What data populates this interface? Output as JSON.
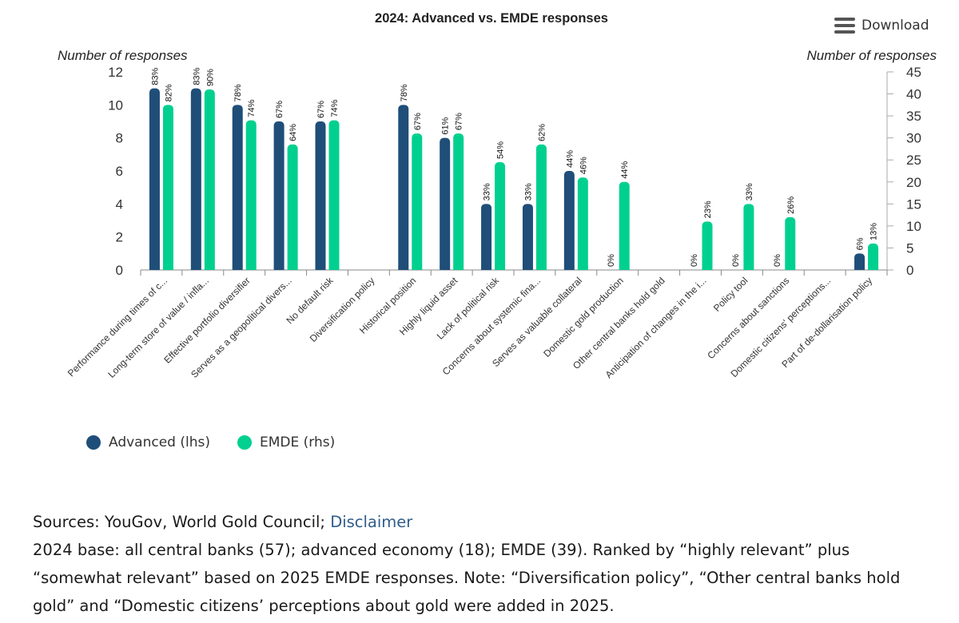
{
  "download": {
    "label": "Download"
  },
  "legend": [
    {
      "label": "Advanced (lhs)",
      "color": "#1f4e79"
    },
    {
      "label": "EMDE (rhs)",
      "color": "#00d08f"
    }
  ],
  "sources": {
    "prefix": "Sources: YouGov, World Gold Council; ",
    "link": "Disclaimer",
    "note": "2024 base: all central banks (57); advanced economy (18); EMDE (39). Ranked by “highly relevant” plus “somewhat relevant” based on 2025 EMDE responses. Note: “Diversification policy”, “Other central banks hold gold” and “Domestic citizens’ perceptions about gold were added in 2025."
  },
  "chart_data": {
    "type": "bar",
    "title": "2024: Advanced vs. EMDE responses",
    "ylabel_left": "Number of responses",
    "ylabel_right": "Number of responses",
    "ylim_left": [
      0,
      12
    ],
    "ylim_right": [
      0,
      45
    ],
    "yticks_left": [
      0,
      2,
      4,
      6,
      8,
      10,
      12
    ],
    "yticks_right": [
      0,
      5,
      10,
      15,
      20,
      25,
      30,
      35,
      40,
      45
    ],
    "grid": false,
    "legend_position": "bottom-left",
    "categories": [
      "Performance during times of c...",
      "Long-term store of value / infla...",
      "Effective portfolio diversifier",
      "Serves as a geopolitical divers...",
      "No default risk",
      "Diversification policy",
      "Historical position",
      "Highly liquid asset",
      "Lack of political risk",
      "Concerns about systemic fina...",
      "Serves as valuable collateral",
      "Domestic gold production",
      "Other central banks hold gold",
      "Anticipation of changes in the i...",
      "Policy tool",
      "Concerns about sanctions",
      "Domestic citizens' perceptions...",
      "Part of de-dollarisation policy"
    ],
    "series": [
      {
        "name": "Advanced (lhs)",
        "axis": "left",
        "color": "#1f4e79",
        "values": [
          11,
          11,
          10,
          9,
          9,
          null,
          10,
          8,
          4,
          4,
          6,
          0,
          null,
          0,
          0,
          0,
          null,
          1
        ],
        "labels": [
          "83%",
          "83%",
          "78%",
          "67%",
          "67%",
          "",
          "78%",
          "61%",
          "33%",
          "33%",
          "44%",
          "0%",
          "",
          "0%",
          "0%",
          "0%",
          "",
          "6%"
        ]
      },
      {
        "name": "EMDE (rhs)",
        "axis": "right",
        "color": "#00d08f",
        "values": [
          37.5,
          41,
          34,
          28.5,
          34,
          null,
          31,
          31,
          24.5,
          28.5,
          21,
          20,
          null,
          11,
          15,
          12,
          null,
          6
        ],
        "labels": [
          "82%",
          "90%",
          "74%",
          "64%",
          "74%",
          "",
          "67%",
          "67%",
          "54%",
          "62%",
          "46%",
          "44%",
          "",
          "23%",
          "33%",
          "26%",
          "",
          "13%"
        ]
      }
    ]
  }
}
